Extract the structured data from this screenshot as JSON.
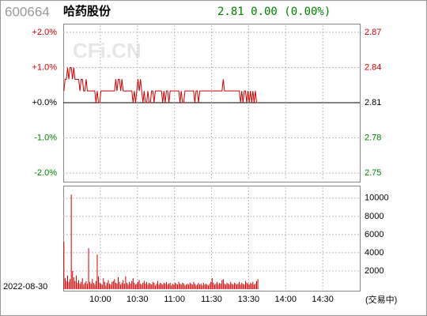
{
  "header": {
    "code": "600664",
    "name": "哈药股份",
    "quote": "2.81 0.00 (0.00%)"
  },
  "chart_data": [
    {
      "type": "line",
      "watermark": "CFi.CN",
      "up_color": "#cc0000",
      "down_color": "#008000",
      "xlim": [
        0,
        240
      ],
      "xticks": [
        30,
        60,
        90,
        120,
        150,
        180,
        210
      ],
      "ylim": [
        -2.2,
        2.2
      ],
      "yticks": [
        {
          "value": 2,
          "label": "+2.0%"
        },
        {
          "value": 1,
          "label": "+1.0%"
        },
        {
          "value": 0,
          "label": "+0.0%"
        },
        {
          "value": -1,
          "label": "-1.0%"
        },
        {
          "value": -2,
          "label": "-2.0%"
        }
      ],
      "y2lim": [
        2.7439,
        2.8761
      ],
      "y2ticks": [
        2.87,
        2.84,
        2.81,
        2.78,
        2.75
      ],
      "series": [
        {
          "color": "#cc0000",
          "axis": "y2",
          "values": [
            2.82,
            2.83,
            2.83,
            2.84,
            2.83,
            2.84,
            2.84,
            2.83,
            2.84,
            2.83,
            2.83,
            2.83,
            2.83,
            2.82,
            2.83,
            2.83,
            2.82,
            2.82,
            2.83,
            2.82,
            2.82,
            2.82,
            2.82,
            2.82,
            2.82,
            2.82,
            2.81,
            2.82,
            2.81,
            2.81,
            2.82,
            2.82,
            2.82,
            2.82,
            2.82,
            2.82,
            2.82,
            2.82,
            2.82,
            2.82,
            2.82,
            2.82,
            2.83,
            2.82,
            2.83,
            2.83,
            2.82,
            2.83,
            2.82,
            2.82,
            2.82,
            2.82,
            2.82,
            2.82,
            2.82,
            2.82,
            2.81,
            2.82,
            2.81,
            2.82,
            2.83,
            2.82,
            2.83,
            2.82,
            2.81,
            2.82,
            2.81,
            2.81,
            2.82,
            2.81,
            2.81,
            2.82,
            2.82,
            2.81,
            2.82,
            2.82,
            2.82,
            2.82,
            2.82,
            2.82,
            2.81,
            2.82,
            2.81,
            2.82,
            2.82,
            2.81,
            2.82,
            2.82,
            2.82,
            2.82,
            2.82,
            2.82,
            2.82,
            2.82,
            2.81,
            2.82,
            2.81,
            2.81,
            2.82,
            2.82,
            2.82,
            2.82,
            2.82,
            2.82,
            2.82,
            2.82,
            2.81,
            2.82,
            2.82,
            2.81,
            2.82,
            2.82,
            2.82,
            2.82,
            2.82,
            2.82,
            2.82,
            2.82,
            2.82,
            2.82,
            2.82,
            2.82,
            2.82,
            2.82,
            2.82,
            2.82,
            2.82,
            2.82,
            2.82,
            2.83,
            2.82,
            2.82,
            2.82,
            2.82,
            2.82,
            2.82,
            2.82,
            2.82,
            2.82,
            2.82,
            2.82,
            2.82,
            2.82,
            2.81,
            2.82,
            2.81,
            2.82,
            2.82,
            2.81,
            2.82,
            2.81,
            2.82,
            2.81,
            2.82,
            2.81,
            2.82,
            2.81,
            2.81
          ]
        }
      ]
    },
    {
      "type": "bar",
      "color": "#cc0000",
      "date_label": "2022-08-30",
      "status_label": "(交易中)",
      "xlim": [
        0,
        240
      ],
      "xticks": [
        {
          "value": 30,
          "label": "10:00"
        },
        {
          "value": 60,
          "label": "10:30"
        },
        {
          "value": 90,
          "label": "11:00"
        },
        {
          "value": 120,
          "label": "11:30"
        },
        {
          "value": 150,
          "label": "13:30"
        },
        {
          "value": 180,
          "label": "14:00"
        },
        {
          "value": 210,
          "label": "14:30"
        }
      ],
      "ylim": [
        0,
        11200
      ],
      "yticks": [
        2000,
        4000,
        6000,
        8000,
        10000
      ],
      "values": [
        5200,
        1200,
        900,
        1500,
        800,
        1100,
        10400,
        2000,
        1300,
        900,
        1500,
        700,
        1000,
        600,
        800,
        1200,
        500,
        700,
        900,
        600,
        4500,
        800,
        600,
        1100,
        700,
        500,
        900,
        3800,
        1400,
        700,
        600,
        500,
        1200,
        800,
        400,
        700,
        1000,
        600,
        500,
        800,
        900,
        1100,
        700,
        600,
        1300,
        800,
        500,
        700,
        1000,
        600,
        1400,
        700,
        500,
        800,
        600,
        900,
        1200,
        700,
        500,
        600,
        800,
        1000,
        600,
        500,
        700,
        900,
        600,
        800,
        500,
        700,
        600,
        500,
        800,
        700,
        400,
        600,
        900,
        500,
        700,
        600,
        500,
        700,
        600,
        800,
        500,
        600,
        700,
        400,
        600,
        500,
        700,
        600,
        500,
        800,
        600,
        500,
        700,
        600,
        400,
        500,
        600,
        500,
        700,
        600,
        500,
        800,
        600,
        400,
        500,
        700,
        500,
        600,
        400,
        700,
        500,
        600,
        500,
        400,
        600,
        800,
        1200,
        700,
        500,
        600,
        800,
        500,
        700,
        600,
        1000,
        1100,
        600,
        500,
        700,
        600,
        500,
        800,
        600,
        500,
        700,
        600,
        500,
        600,
        800,
        500,
        700,
        600,
        500,
        900,
        700,
        600,
        500,
        700,
        600,
        800,
        500,
        600,
        900,
        1100
      ]
    }
  ]
}
